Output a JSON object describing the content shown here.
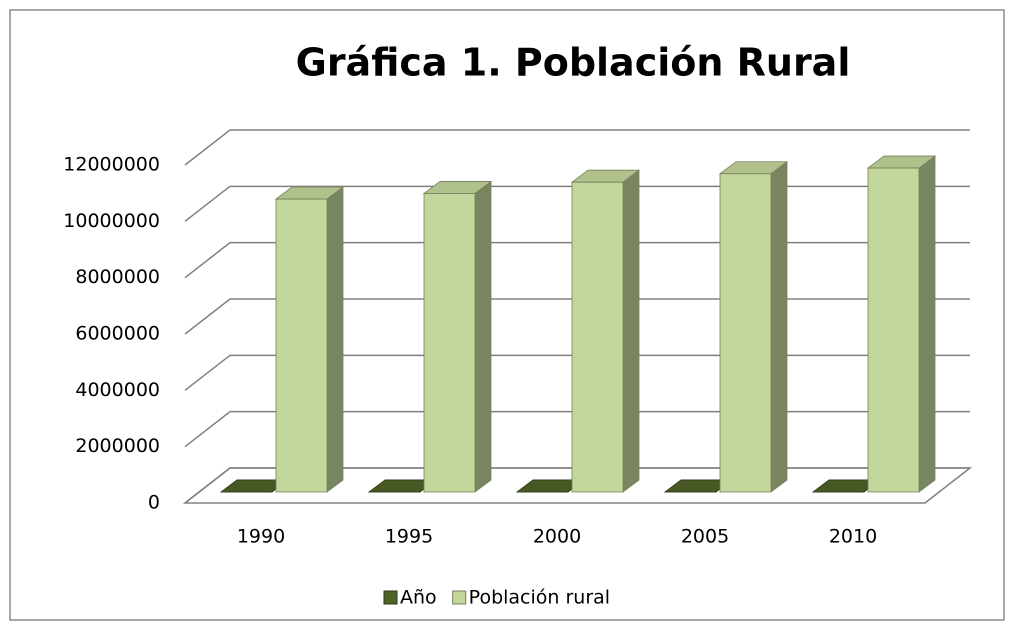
{
  "chart_data": {
    "type": "bar3d",
    "title": "Gráfica 1. Población Rural",
    "categories": [
      "1990",
      "1995",
      "2000",
      "2005",
      "2010"
    ],
    "series": [
      {
        "name": "Año",
        "color": "#4f6228",
        "values": [
          1990,
          1995,
          2000,
          2005,
          2010
        ]
      },
      {
        "name": "Población rural",
        "color": "#c3d69b",
        "values": [
          10400000,
          10600000,
          11000000,
          11300000,
          11500000
        ]
      }
    ],
    "ylim": [
      0,
      12000000
    ],
    "yticks": [
      0,
      2000000,
      4000000,
      6000000,
      8000000,
      10000000,
      12000000
    ],
    "grid": true,
    "legend": "bottom"
  }
}
